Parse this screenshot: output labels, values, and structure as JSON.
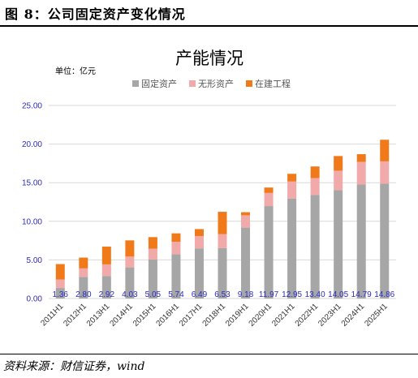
{
  "figure": {
    "title": "图 8：公司固定资产变化情况",
    "source": "资料来源：财信证券，wind"
  },
  "chart_data": {
    "type": "bar",
    "stacked": true,
    "title": "产能情况",
    "unit_label": "单位：亿元",
    "categories": [
      "2011H1",
      "2012H1",
      "2013H1",
      "2014H1",
      "2015H1",
      "2016H1",
      "2017H1",
      "2018H1",
      "2019H1",
      "2020H1",
      "2021H1",
      "2022H1",
      "2023H1",
      "2024H1",
      "2025H1"
    ],
    "series": [
      {
        "name": "固定资产",
        "color": "#a6a6a6",
        "values": [
          1.36,
          2.8,
          2.92,
          4.03,
          5.05,
          5.74,
          6.49,
          6.53,
          9.18,
          11.97,
          12.95,
          13.4,
          14.05,
          14.79,
          14.86
        ]
      },
      {
        "name": "无形资产",
        "color": "#f2a9a9",
        "values": [
          1.1,
          1.1,
          1.5,
          1.4,
          1.4,
          1.6,
          1.6,
          1.8,
          1.6,
          1.7,
          2.2,
          2.2,
          2.5,
          2.9,
          2.9
        ]
      },
      {
        "name": "在建工程",
        "color": "#f07a1a",
        "values": [
          2.0,
          1.4,
          2.3,
          2.1,
          1.5,
          1.1,
          0.9,
          2.9,
          0.4,
          0.7,
          1.0,
          1.5,
          1.9,
          1.0,
          2.8
        ]
      }
    ],
    "data_labels": [
      "1.36",
      "2.80",
      "2.92",
      "4.03",
      "5.05",
      "5.74",
      "6.49",
      "6.53",
      "9.18",
      "11.97",
      "12.95",
      "13.40",
      "14.05",
      "14.79",
      "14.86"
    ],
    "yticks": [
      "0.00",
      "5.00",
      "10.00",
      "15.00",
      "20.00",
      "25.00"
    ],
    "ylim": [
      0,
      25
    ],
    "grid": true,
    "legend_position": "top-center"
  }
}
